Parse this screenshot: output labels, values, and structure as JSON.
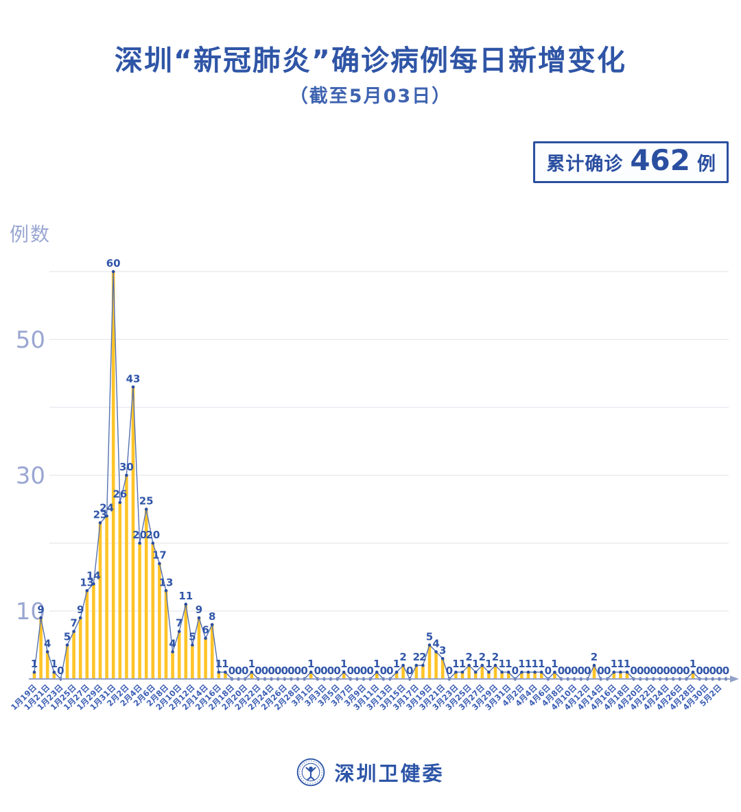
{
  "header": {
    "title": "深圳“新冠肺炎”确诊病例每日新增变化",
    "subtitle": "（截至5月03日）"
  },
  "summary_badge": {
    "label": "累计确诊",
    "value": "462",
    "unit": "例"
  },
  "footer": {
    "source": "深圳卫健委",
    "logo": "shenzhen-health-commission-emblem"
  },
  "colors": {
    "title_blue": "#2f55a6",
    "bar": "#ffc428",
    "line": "#5571b0",
    "dot": "#2b4ea2",
    "value_label": "#3156a8",
    "xtick": "#3b5eb4",
    "ytick": "#9aa6d2",
    "gridline": "#e6e7ee",
    "axis": "#93a1c8"
  },
  "chart_data": {
    "type": "bar",
    "title": "深圳“新冠肺炎”确诊病例每日新增变化（截至5月03日）",
    "xlabel": "",
    "ylabel": "例数",
    "ylim": [
      0,
      60
    ],
    "grid": true,
    "grid_interval": 10,
    "yticks_labeled": [
      10,
      30,
      50
    ],
    "x_tick_every": 2,
    "x_tick_labels": [
      "1月19日",
      "1月21日",
      "1月23日",
      "1月25日",
      "1月27日",
      "1月29日",
      "1月31日",
      "2月2日",
      "2月4日",
      "2月6日",
      "2月8日",
      "2月10日",
      "2月12日",
      "2月14日",
      "2月16日",
      "2月18日",
      "2月20日",
      "2月22日",
      "2月24日",
      "2月26日",
      "2月28日",
      "3月1日",
      "3月3日",
      "3月5日",
      "3月7日",
      "3月9日",
      "3月11日",
      "3月13日",
      "3月15日",
      "3月17日",
      "3月19日",
      "3月21日",
      "3月23日",
      "3月25日",
      "3月27日",
      "3月29日",
      "3月31日",
      "4月2日",
      "4月4日",
      "4月6日",
      "4月8日",
      "4月10日",
      "4月12日",
      "4月14日",
      "4月16日",
      "4月18日",
      "4月20日",
      "4月22日",
      "4月24日",
      "4月26日",
      "4月28日",
      "4月30日",
      "5月2日"
    ],
    "values": [
      1,
      9,
      4,
      1,
      0,
      5,
      7,
      9,
      13,
      14,
      23,
      24,
      60,
      26,
      30,
      43,
      20,
      25,
      20,
      17,
      13,
      4,
      7,
      11,
      5,
      9,
      6,
      8,
      1,
      1,
      0,
      0,
      0,
      1,
      0,
      0,
      0,
      0,
      0,
      0,
      0,
      0,
      1,
      0,
      0,
      0,
      0,
      1,
      0,
      0,
      0,
      0,
      1,
      0,
      0,
      1,
      2,
      0,
      2,
      2,
      5,
      4,
      3,
      0,
      1,
      1,
      2,
      1,
      2,
      1,
      2,
      1,
      1,
      0,
      1,
      1,
      1,
      1,
      0,
      1,
      0,
      0,
      0,
      0,
      0,
      2,
      0,
      0,
      1,
      1,
      1,
      0,
      0,
      0,
      0,
      0,
      0,
      0,
      0,
      0,
      1,
      0,
      0,
      0,
      0,
      0
    ],
    "point_labels_shown": true,
    "series_total": 462
  }
}
